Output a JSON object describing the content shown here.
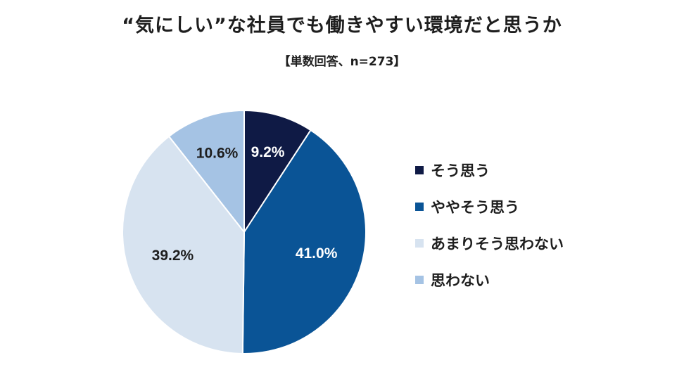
{
  "title": "“気にしい”な社員でも働きやすい環境だと思うか",
  "subtitle": "【単数回答、n=273】",
  "chart_data": {
    "type": "pie",
    "categories": [
      "そう思う",
      "ややそう思う",
      "あまりそう思わない",
      "思わない"
    ],
    "values": [
      9.2,
      41.0,
      39.2,
      10.6
    ],
    "value_labels": [
      "9.2%",
      "41.0%",
      "39.2%",
      "10.6%"
    ],
    "colors": [
      "#0f1a45",
      "#0a5496",
      "#d7e3f0",
      "#a5c3e4"
    ],
    "label_colors": [
      "#ffffff",
      "#ffffff",
      "#1e1e1e",
      "#1e1e1e"
    ],
    "legend_position": "right",
    "start": "12 o'clock, clockwise"
  }
}
